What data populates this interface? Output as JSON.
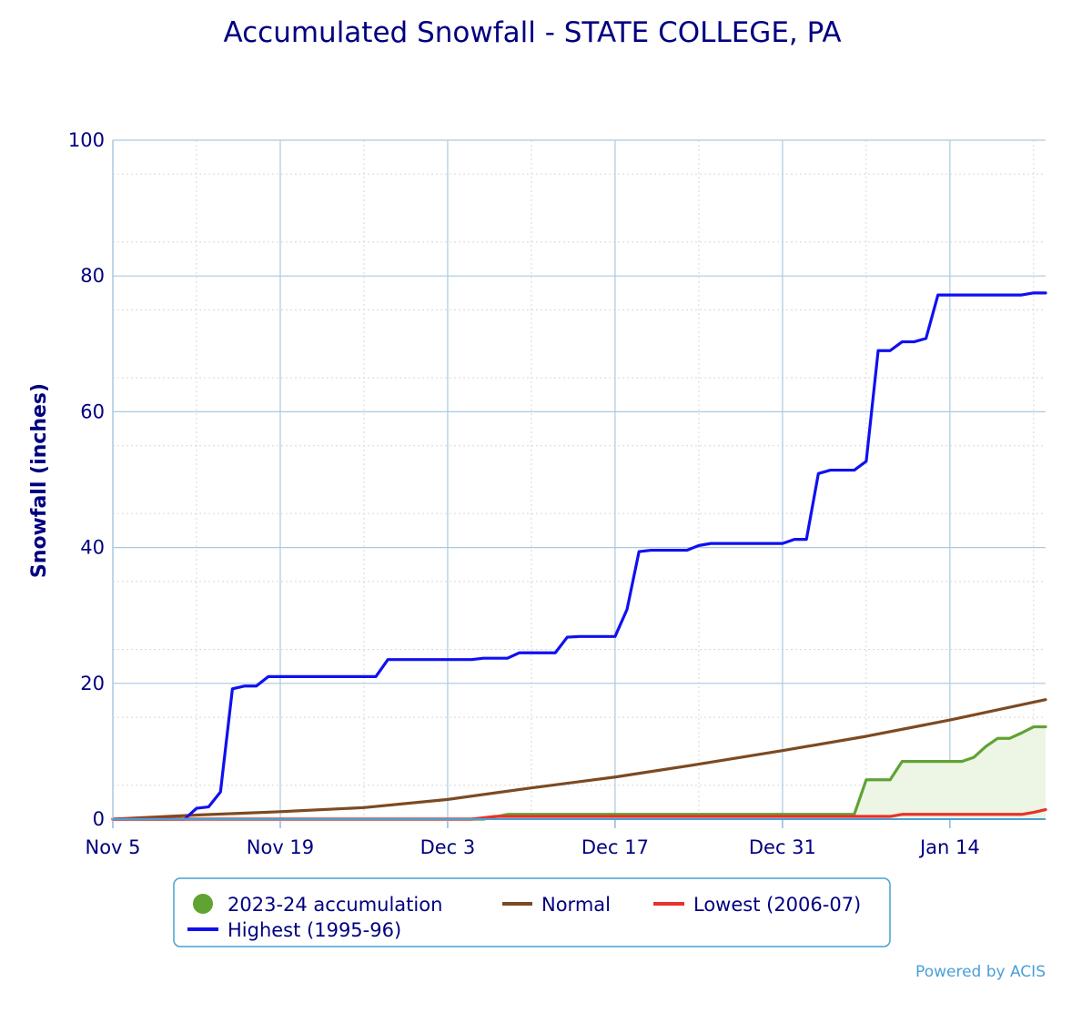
{
  "chart_data": {
    "type": "line",
    "title": "Accumulated Snowfall - STATE COLLEGE, PA",
    "xlabel": "",
    "ylabel": "Snowfall (inches)",
    "ylim": [
      0,
      100
    ],
    "y_ticks": [
      0,
      20,
      40,
      60,
      80,
      100
    ],
    "x_start": "2023-11-05",
    "x_end": "2024-01-22",
    "x_ticks": [
      {
        "date": "2023-11-05",
        "label": "Nov 5"
      },
      {
        "date": "2023-11-19",
        "label": "Nov 19"
      },
      {
        "date": "2023-12-03",
        "label": "Dec 3"
      },
      {
        "date": "2023-12-17",
        "label": "Dec 17"
      },
      {
        "date": "2023-12-31",
        "label": "Dec 31"
      },
      {
        "date": "2024-01-14",
        "label": "Jan 14"
      }
    ],
    "grid": true,
    "legend_position": "bottom",
    "series": [
      {
        "name": "2023-24 accumulation",
        "color": "#5fa333",
        "fill": "#edf5e5",
        "marker": "circle",
        "points": [
          [
            "2023-11-05",
            0
          ],
          [
            "2023-12-06",
            0
          ],
          [
            "2023-12-08",
            0.7
          ],
          [
            "2024-01-06",
            0.7
          ],
          [
            "2024-01-07",
            5.8
          ],
          [
            "2024-01-09",
            5.8
          ],
          [
            "2024-01-10",
            8.5
          ],
          [
            "2024-01-15",
            8.5
          ],
          [
            "2024-01-16",
            9.1
          ],
          [
            "2024-01-17",
            10.7
          ],
          [
            "2024-01-18",
            11.9
          ],
          [
            "2024-01-19",
            11.9
          ],
          [
            "2024-01-20",
            12.7
          ],
          [
            "2024-01-21",
            13.6
          ],
          [
            "2024-01-22",
            13.6
          ]
        ]
      },
      {
        "name": "Normal",
        "color": "#7b4a23",
        "points": [
          [
            "2023-11-05",
            0
          ],
          [
            "2023-11-12",
            0.6
          ],
          [
            "2023-11-19",
            1.1
          ],
          [
            "2023-11-26",
            1.7
          ],
          [
            "2023-12-03",
            2.9
          ],
          [
            "2023-12-10",
            4.6
          ],
          [
            "2023-12-17",
            6.2
          ],
          [
            "2023-12-24",
            8.1
          ],
          [
            "2023-12-31",
            10.1
          ],
          [
            "2024-01-07",
            12.2
          ],
          [
            "2024-01-14",
            14.6
          ],
          [
            "2024-01-22",
            17.6
          ]
        ]
      },
      {
        "name": "Lowest (2006-07)",
        "color": "#e8322a",
        "points": [
          [
            "2023-11-05",
            0
          ],
          [
            "2023-12-05",
            0
          ],
          [
            "2023-12-07",
            0.4
          ],
          [
            "2024-01-09",
            0.4
          ],
          [
            "2024-01-10",
            0.7
          ],
          [
            "2024-01-20",
            0.7
          ],
          [
            "2024-01-21",
            1.0
          ],
          [
            "2024-01-22",
            1.4
          ]
        ]
      },
      {
        "name": "Highest (1995-96)",
        "color": "#1010f0",
        "points": [
          [
            "2023-11-05",
            0
          ],
          [
            "2023-11-11",
            0
          ],
          [
            "2023-11-12",
            1.6
          ],
          [
            "2023-11-13",
            1.8
          ],
          [
            "2023-11-14",
            4.0
          ],
          [
            "2023-11-15",
            19.2
          ],
          [
            "2023-11-16",
            19.6
          ],
          [
            "2023-11-17",
            19.6
          ],
          [
            "2023-11-18",
            21.0
          ],
          [
            "2023-11-27",
            21.0
          ],
          [
            "2023-11-28",
            23.5
          ],
          [
            "2023-12-05",
            23.5
          ],
          [
            "2023-12-06",
            23.7
          ],
          [
            "2023-12-08",
            23.7
          ],
          [
            "2023-12-09",
            24.5
          ],
          [
            "2023-12-12",
            24.5
          ],
          [
            "2023-12-13",
            26.8
          ],
          [
            "2023-12-14",
            26.9
          ],
          [
            "2023-12-16",
            26.9
          ],
          [
            "2023-12-17",
            26.9
          ],
          [
            "2023-12-18",
            30.9
          ],
          [
            "2023-12-19",
            39.4
          ],
          [
            "2023-12-20",
            39.6
          ],
          [
            "2023-12-22",
            39.6
          ],
          [
            "2023-12-23",
            39.6
          ],
          [
            "2023-12-24",
            40.3
          ],
          [
            "2023-12-25",
            40.6
          ],
          [
            "2023-12-31",
            40.6
          ],
          [
            "2024-01-01",
            41.2
          ],
          [
            "2024-01-02",
            41.2
          ],
          [
            "2024-01-03",
            50.9
          ],
          [
            "2024-01-04",
            51.4
          ],
          [
            "2024-01-06",
            51.4
          ],
          [
            "2024-01-07",
            52.7
          ],
          [
            "2024-01-08",
            69.0
          ],
          [
            "2024-01-09",
            69.0
          ],
          [
            "2024-01-10",
            70.3
          ],
          [
            "2024-01-11",
            70.3
          ],
          [
            "2024-01-12",
            70.8
          ],
          [
            "2024-01-13",
            77.2
          ],
          [
            "2024-01-20",
            77.2
          ],
          [
            "2024-01-21",
            77.5
          ],
          [
            "2024-01-22",
            77.5
          ]
        ]
      }
    ]
  },
  "legend": {
    "items": [
      {
        "label": "2023-24 accumulation"
      },
      {
        "label": "Normal"
      },
      {
        "label": "Lowest (2006-07)"
      },
      {
        "label": "Highest (1995-96)"
      }
    ]
  },
  "credit": "Powered by ACIS"
}
